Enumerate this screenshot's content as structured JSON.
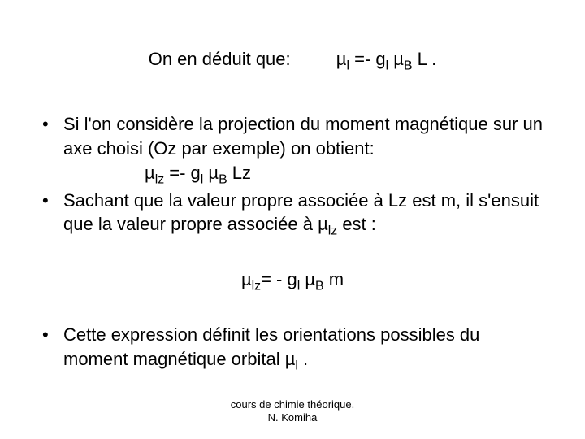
{
  "top": {
    "left": "On en déduit que:",
    "eq_pre": "µ",
    "eq_sub1": "l",
    "eq_mid": " =- g",
    "eq_sub2": "l",
    "eq_mid2": " µ",
    "eq_sub3": "B",
    "eq_tail": " L ."
  },
  "b1": {
    "line1_a": "Si l'on considère la projection du moment magnétique sur un axe choisi (Oz par exemple) on obtient:",
    "eq_pre": "µ",
    "eq_sub1": "lz",
    "eq_mid": " =- g",
    "eq_sub2": "l",
    "eq_mid2": " µ",
    "eq_sub3": "B",
    "eq_tail": " Lz"
  },
  "b2": {
    "line_a": "Sachant que la valeur propre associée à Lz est m, il s'ensuit que la valeur propre associée à µ",
    "line_sub": "lz",
    "line_b": " est :"
  },
  "center": {
    "eq_pre": "µ",
    "eq_sub1": "lz",
    "eq_mid": "= - g",
    "eq_sub2": "l",
    "eq_mid2": " µ",
    "eq_sub3": "B",
    "eq_tail": " m"
  },
  "b3": {
    "line_a": "Cette expression définit les orientations possibles du moment magnétique orbital µ",
    "line_sub": "l",
    "line_b": " ."
  },
  "footer": {
    "l1": "cours de chimie théorique.",
    "l2": "N. Komiha"
  },
  "bullet_char": "•",
  "colors": {
    "text": "#000000",
    "bg": "#ffffff"
  },
  "font_sizes": {
    "body": 22,
    "footer": 13
  }
}
